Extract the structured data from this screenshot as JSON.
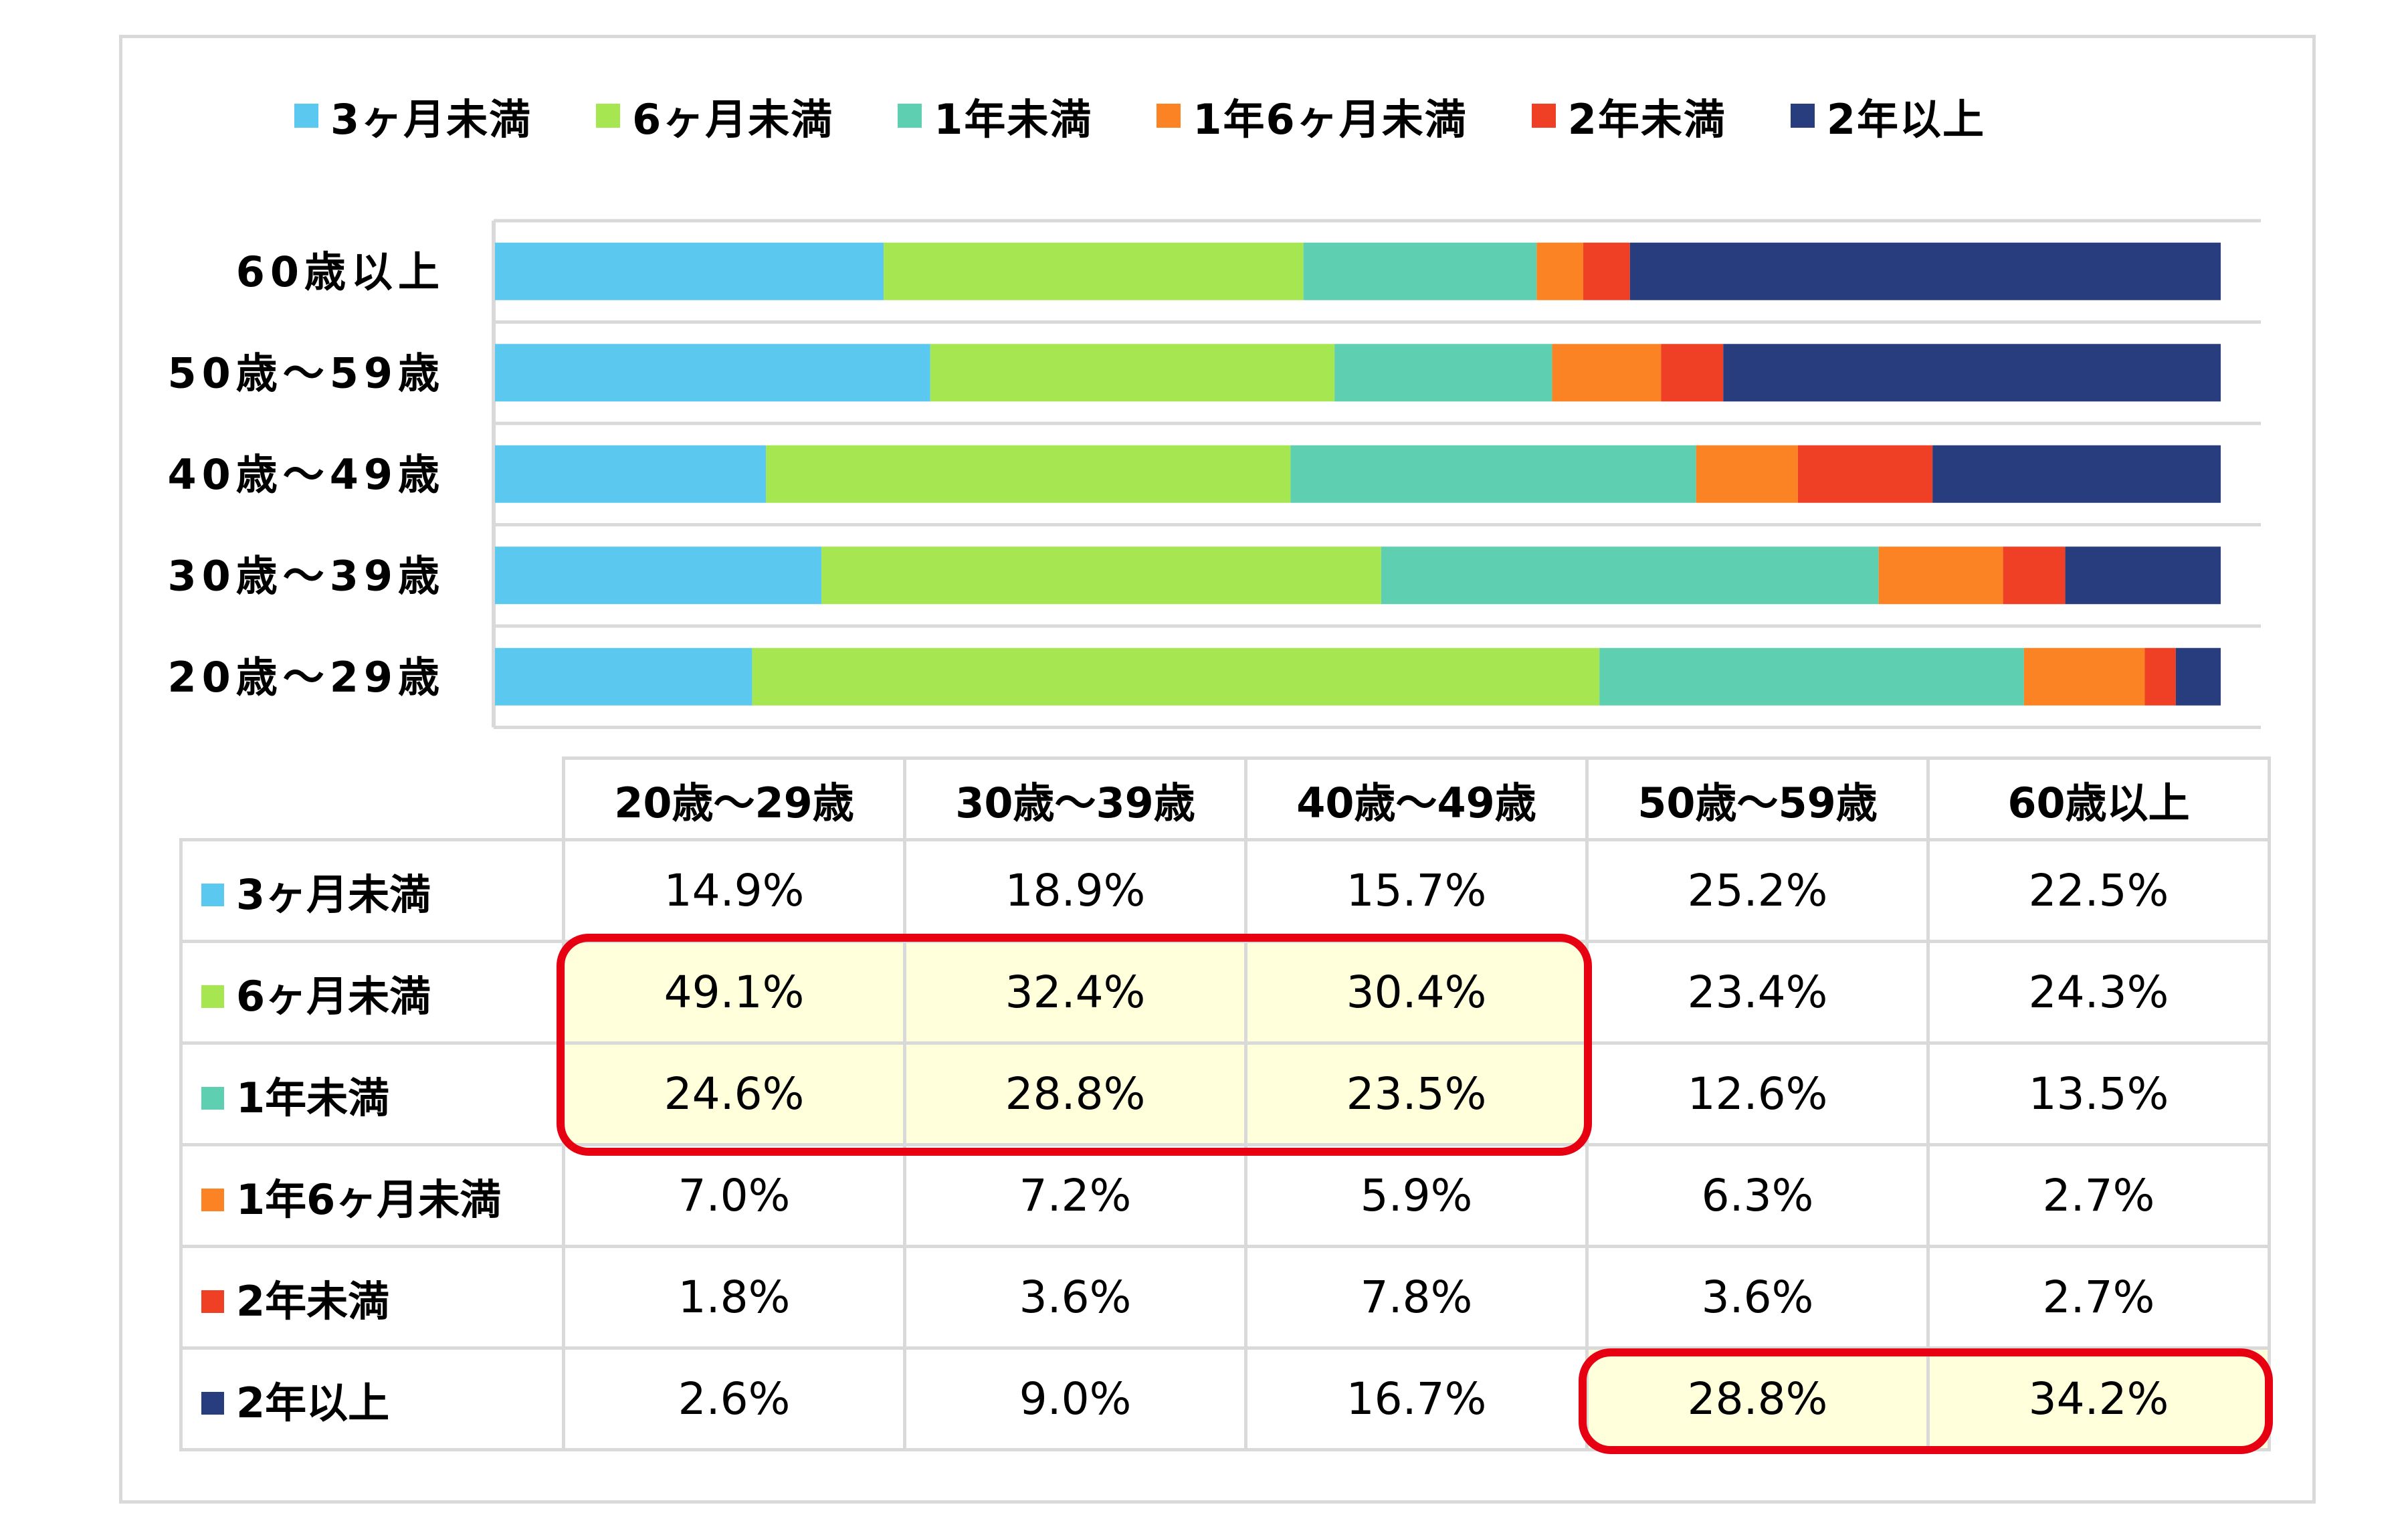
{
  "chart_data": {
    "type": "bar",
    "orientation": "horizontal",
    "stacked": true,
    "percent": true,
    "categories": [
      "60歳以上",
      "50歳～59歳",
      "40歳～49歳",
      "30歳～39歳",
      "20歳～29歳"
    ],
    "series": [
      {
        "name": "3ヶ月未満",
        "color": "#5bc8f0",
        "values": [
          22.5,
          25.2,
          15.7,
          18.9,
          14.9
        ]
      },
      {
        "name": "6ヶ月未満",
        "color": "#a5e651",
        "values": [
          24.3,
          23.4,
          30.4,
          32.4,
          49.1
        ]
      },
      {
        "name": "1年未満",
        "color": "#5ecfb0",
        "values": [
          13.5,
          12.6,
          23.5,
          28.8,
          24.6
        ]
      },
      {
        "name": "1年6ヶ月未満",
        "color": "#fb8324",
        "values": [
          2.7,
          6.3,
          5.9,
          7.2,
          7.0
        ]
      },
      {
        "name": "2年未満",
        "color": "#ef4025",
        "values": [
          2.7,
          3.6,
          7.8,
          3.6,
          1.8
        ]
      },
      {
        "name": "2年以上",
        "color": "#283d7e",
        "values": [
          34.2,
          28.8,
          16.7,
          9.0,
          2.6
        ]
      }
    ],
    "legend_position": "top",
    "grid": false
  },
  "table": {
    "columns": [
      "20歳～29歳",
      "30歳～39歳",
      "40歳～49歳",
      "50歳～59歳",
      "60歳以上"
    ],
    "rows": [
      {
        "label": "3ヶ月未満",
        "color": "#5bc8f0",
        "cells": [
          "14.9%",
          "18.9%",
          "15.7%",
          "25.2%",
          "22.5%"
        ]
      },
      {
        "label": "6ヶ月未満",
        "color": "#a5e651",
        "cells": [
          "49.1%",
          "32.4%",
          "30.4%",
          "23.4%",
          "24.3%"
        ]
      },
      {
        "label": "1年未満",
        "color": "#5ecfb0",
        "cells": [
          "24.6%",
          "28.8%",
          "23.5%",
          "12.6%",
          "13.5%"
        ]
      },
      {
        "label": "1年6ヶ月未満",
        "color": "#fb8324",
        "cells": [
          "7.0%",
          "7.2%",
          "5.9%",
          "6.3%",
          "2.7%"
        ]
      },
      {
        "label": "2年未満",
        "color": "#ef4025",
        "cells": [
          "1.8%",
          "3.6%",
          "7.8%",
          "3.6%",
          "2.7%"
        ]
      },
      {
        "label": "2年以上",
        "color": "#283d7e",
        "cells": [
          "2.6%",
          "9.0%",
          "16.7%",
          "28.8%",
          "34.2%"
        ]
      }
    ],
    "highlighted_cells": [
      [
        1,
        0
      ],
      [
        1,
        1
      ],
      [
        1,
        2
      ],
      [
        2,
        0
      ],
      [
        2,
        1
      ],
      [
        2,
        2
      ],
      [
        5,
        3
      ],
      [
        5,
        4
      ]
    ],
    "highlight_color": "#e60012"
  }
}
